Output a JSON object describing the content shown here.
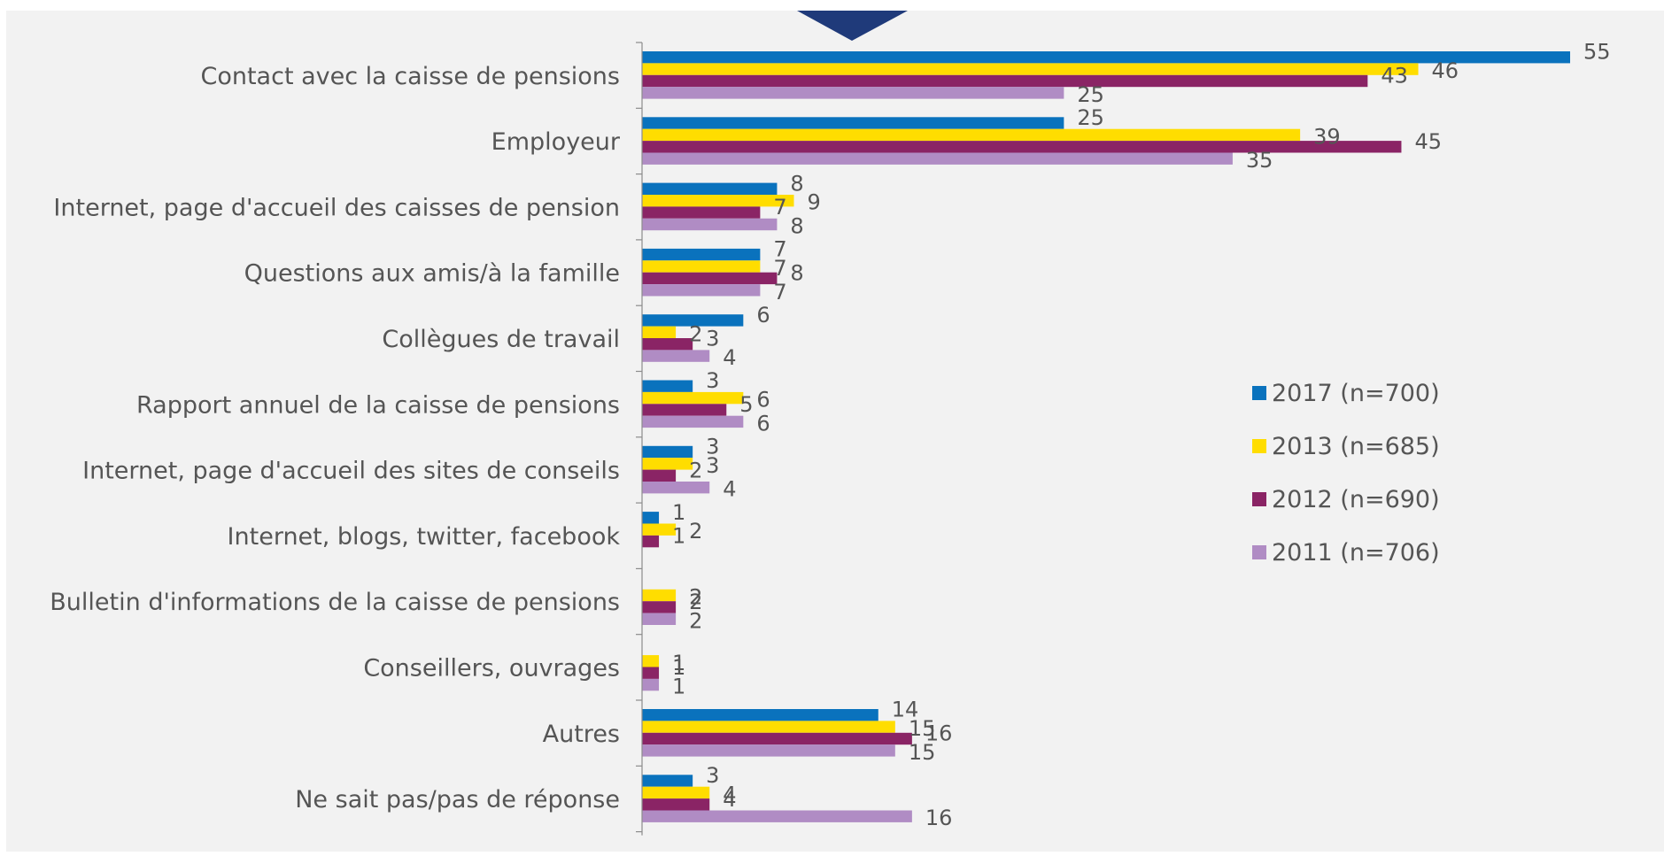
{
  "chart_data": {
    "type": "bar",
    "orientation": "horizontal",
    "categories": [
      "Contact avec la caisse de pensions",
      "Employeur",
      "Internet, page d'accueil des caisses de pension",
      "Questions aux amis/à la famille",
      "Collègues de travail",
      "Rapport annuel de la caisse de pensions",
      "Internet, page d'accueil des sites de conseils",
      "Internet, blogs, twitter, facebook",
      "Bulletin d'informations de la caisse de pensions",
      "Conseillers, ouvrages",
      "Autres",
      "Ne sait pas/pas de réponse"
    ],
    "series": [
      {
        "name": "2017 (n=700)",
        "color": "#0a72bd",
        "values": [
          55,
          25,
          8,
          7,
          6,
          3,
          3,
          1,
          null,
          null,
          14,
          3
        ]
      },
      {
        "name": "2013 (n=685)",
        "color": "#ffdd00",
        "values": [
          46,
          39,
          9,
          7,
          2,
          6,
          3,
          2,
          2,
          1,
          15,
          4
        ]
      },
      {
        "name": "2012 (n=690)",
        "color": "#8a2465",
        "values": [
          43,
          45,
          7,
          8,
          3,
          5,
          2,
          1,
          2,
          1,
          16,
          4
        ]
      },
      {
        "name": "2011 (n=706)",
        "color": "#b08cc4",
        "values": [
          25,
          35,
          8,
          7,
          4,
          6,
          4,
          null,
          2,
          1,
          15,
          16
        ]
      }
    ],
    "xlim": [
      0,
      60
    ],
    "grid": false,
    "legend_position": "right"
  }
}
